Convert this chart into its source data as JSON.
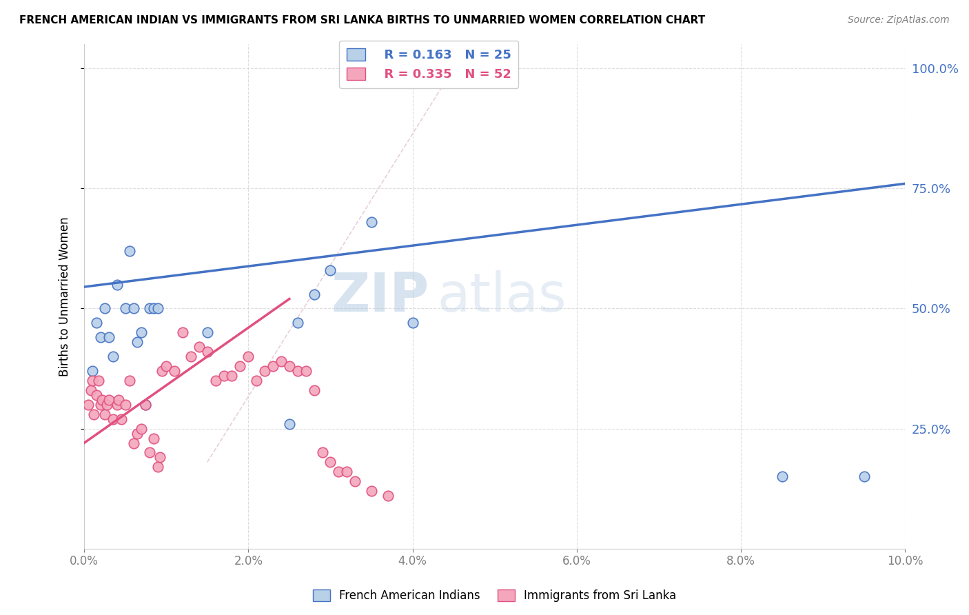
{
  "title": "FRENCH AMERICAN INDIAN VS IMMIGRANTS FROM SRI LANKA BIRTHS TO UNMARRIED WOMEN CORRELATION CHART",
  "source": "Source: ZipAtlas.com",
  "ylabel": "Births to Unmarried Women",
  "legend_blue_r": "R = 0.163",
  "legend_blue_n": "N = 25",
  "legend_pink_r": "R = 0.335",
  "legend_pink_n": "N = 52",
  "legend_blue_label": "French American Indians",
  "legend_pink_label": "Immigrants from Sri Lanka",
  "watermark_zip": "ZIP",
  "watermark_atlas": "atlas",
  "blue_color": "#b8d0e8",
  "blue_line_color": "#4472c4",
  "pink_color": "#f4a7bc",
  "pink_line_color": "#e05080",
  "blue_scatter_x": [
    0.1,
    0.15,
    0.2,
    0.25,
    0.3,
    0.35,
    0.4,
    0.5,
    0.55,
    0.6,
    0.65,
    0.7,
    0.75,
    0.8,
    0.85,
    0.9,
    1.5,
    2.5,
    2.6,
    2.8,
    3.0,
    3.5,
    4.0,
    8.5,
    9.5
  ],
  "blue_scatter_y": [
    37,
    47,
    44,
    50,
    44,
    40,
    55,
    50,
    62,
    50,
    43,
    45,
    30,
    50,
    50,
    50,
    45,
    26,
    47,
    53,
    58,
    68,
    47,
    15,
    15
  ],
  "pink_scatter_x": [
    0.05,
    0.08,
    0.1,
    0.12,
    0.15,
    0.18,
    0.2,
    0.22,
    0.25,
    0.28,
    0.3,
    0.35,
    0.4,
    0.42,
    0.45,
    0.5,
    0.55,
    0.6,
    0.65,
    0.7,
    0.75,
    0.8,
    0.85,
    0.9,
    0.92,
    0.95,
    1.0,
    1.1,
    1.2,
    1.3,
    1.4,
    1.5,
    1.6,
    1.7,
    1.8,
    1.9,
    2.0,
    2.1,
    2.2,
    2.3,
    2.4,
    2.5,
    2.6,
    2.7,
    2.8,
    2.9,
    3.0,
    3.1,
    3.2,
    3.3,
    3.5,
    3.7
  ],
  "pink_scatter_y": [
    30,
    33,
    35,
    28,
    32,
    35,
    30,
    31,
    28,
    30,
    31,
    27,
    30,
    31,
    27,
    30,
    35,
    22,
    24,
    25,
    30,
    20,
    23,
    17,
    19,
    37,
    38,
    37,
    45,
    40,
    42,
    41,
    35,
    36,
    36,
    38,
    40,
    35,
    37,
    38,
    39,
    38,
    37,
    37,
    33,
    20,
    18,
    16,
    16,
    14,
    12,
    11
  ],
  "blue_line_x0": 0.0,
  "blue_line_y0": 54.5,
  "blue_line_x1": 10.0,
  "blue_line_y1": 76.0,
  "pink_line_x0": 0.0,
  "pink_line_y0": 22.0,
  "pink_line_x1": 2.5,
  "pink_line_y1": 52.0,
  "dash_line_x0": 1.5,
  "dash_line_y0": 18.0,
  "dash_line_x1": 4.5,
  "dash_line_y1": 100.0,
  "xlim": [
    0.0,
    10.0
  ],
  "ylim": [
    0.0,
    105.0
  ],
  "xticks": [
    0.0,
    2.0,
    4.0,
    6.0,
    8.0,
    10.0
  ],
  "yticks": [
    25.0,
    50.0,
    75.0,
    100.0
  ]
}
